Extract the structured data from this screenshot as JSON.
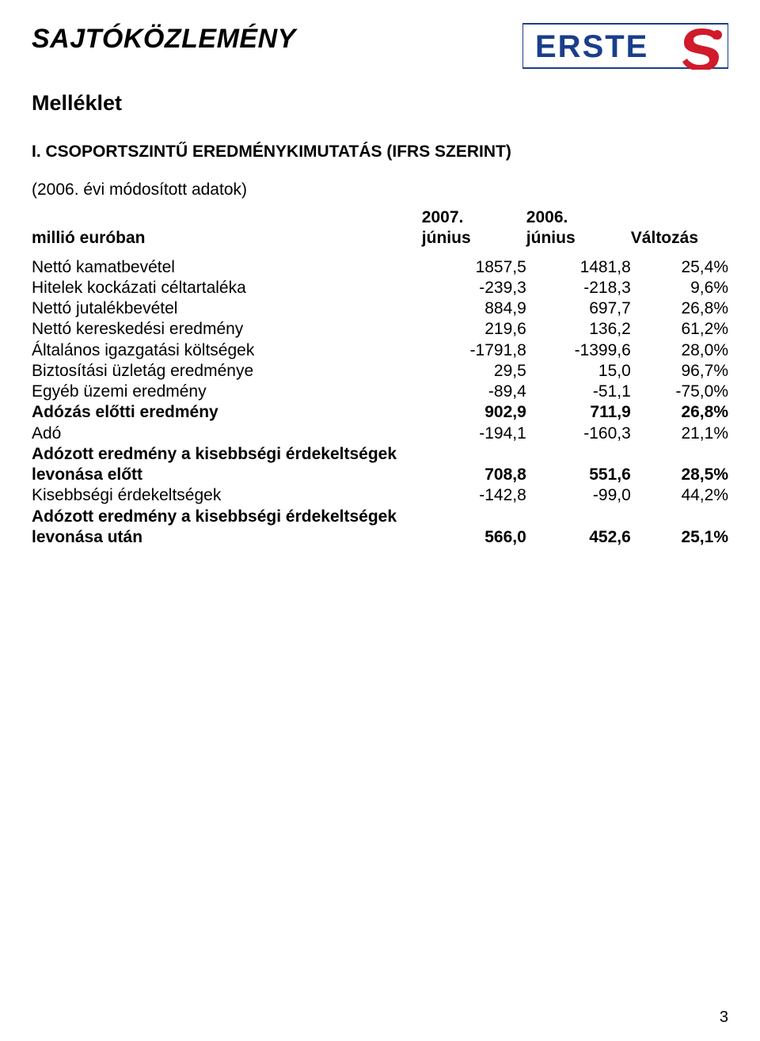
{
  "header": {
    "title": "SAJTÓKÖZLEMÉNY",
    "subtitle": "Melléklet",
    "section": "I. CSOPORTSZINTŰ EREDMÉNYKIMUTATÁS (IFRS SZERINT)",
    "note": "(2006. évi módosított adatok)",
    "logo": {
      "text": "ERSTE",
      "text_color": "#1a3e8c",
      "s_color": "#d11a2a",
      "bg_color": "#ffffff",
      "border_color": "#1a3e8c"
    }
  },
  "table": {
    "type": "table",
    "col_header_label": "millió euróban",
    "columns": [
      {
        "line1": "2007.",
        "line2": "június"
      },
      {
        "line1": "2006.",
        "line2": "június"
      },
      {
        "line1": "",
        "line2": "Változás"
      }
    ],
    "rows": [
      {
        "label": "Nettó kamatbevétel",
        "v1": "1857,5",
        "v2": "1481,8",
        "v3": "25,4%",
        "bold": false
      },
      {
        "label": "Hitelek kockázati céltartaléka",
        "v1": "-239,3",
        "v2": "-218,3",
        "v3": "9,6%",
        "bold": false
      },
      {
        "label": "Nettó jutalékbevétel",
        "v1": "884,9",
        "v2": "697,7",
        "v3": "26,8%",
        "bold": false
      },
      {
        "label": "Nettó kereskedési eredmény",
        "v1": "219,6",
        "v2": "136,2",
        "v3": "61,2%",
        "bold": false
      },
      {
        "label": "Általános igazgatási költségek",
        "v1": "-1791,8",
        "v2": "-1399,6",
        "v3": "28,0%",
        "bold": false
      },
      {
        "label": "Biztosítási üzletág eredménye",
        "v1": "29,5",
        "v2": "15,0",
        "v3": "96,7%",
        "bold": false
      },
      {
        "label": "Egyéb üzemi eredmény",
        "v1": "-89,4",
        "v2": "-51,1",
        "v3": "-75,0%",
        "bold": false
      },
      {
        "label": "Adózás előtti eredmény",
        "v1": "902,9",
        "v2": "711,9",
        "v3": "26,8%",
        "bold": true
      },
      {
        "label": "Adó",
        "v1": "-194,1",
        "v2": "-160,3",
        "v3": "21,1%",
        "bold": false
      },
      {
        "label": "Adózott eredmény a kisebbségi érdekeltségek levonása előtt",
        "v1": "708,8",
        "v2": "551,6",
        "v3": "28,5%",
        "bold": true
      },
      {
        "label": "Kisebbségi érdekeltségek",
        "v1": "-142,8",
        "v2": "-99,0",
        "v3": "44,2%",
        "bold": false
      },
      {
        "label": "Adózott eredmény a kisebbségi érdekeltségek levonása után",
        "v1": "566,0",
        "v2": "452,6",
        "v3": "25,1%",
        "bold": true
      }
    ],
    "font_size_pt": 16,
    "header_font_weight": 700,
    "text_color": "#000000",
    "background_color": "#ffffff"
  },
  "page_number": "3"
}
